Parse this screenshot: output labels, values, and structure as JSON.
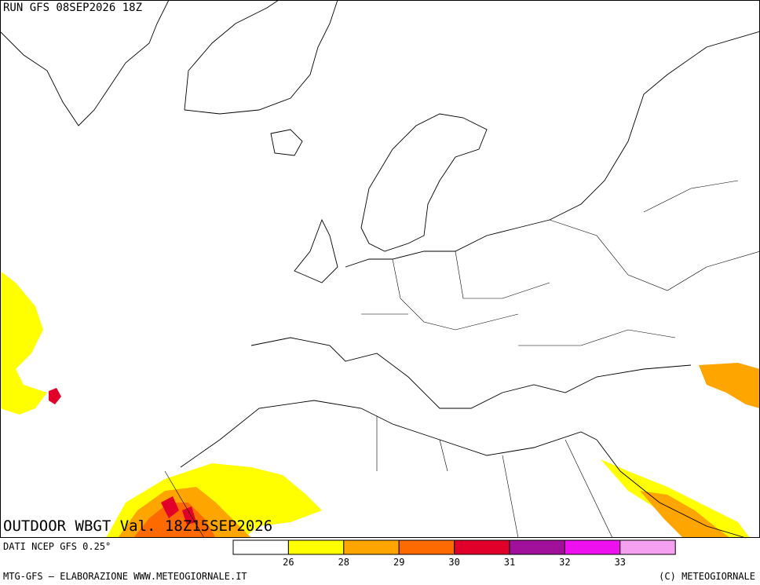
{
  "header": {
    "run": "RUN GFS 08SEP2026 18Z"
  },
  "map": {
    "title": "OUTDOOR WBGT Val. 18Z15SEP2026"
  },
  "footer": {
    "source": "DATI NCEP GFS 0.25°",
    "credit": "MTG-GFS — ELABORAZIONE WWW.METEOGIORNALE.IT",
    "copyright": "(C) METEOGIORNALE"
  },
  "legend": {
    "colors": [
      "#ffffff",
      "#ffff00",
      "#ffa500",
      "#ff6a00",
      "#e0002a",
      "#a0109a",
      "#ee10ee",
      "#f5a0f0"
    ],
    "ticks": [
      26,
      28,
      29,
      30,
      31,
      32,
      33
    ]
  }
}
